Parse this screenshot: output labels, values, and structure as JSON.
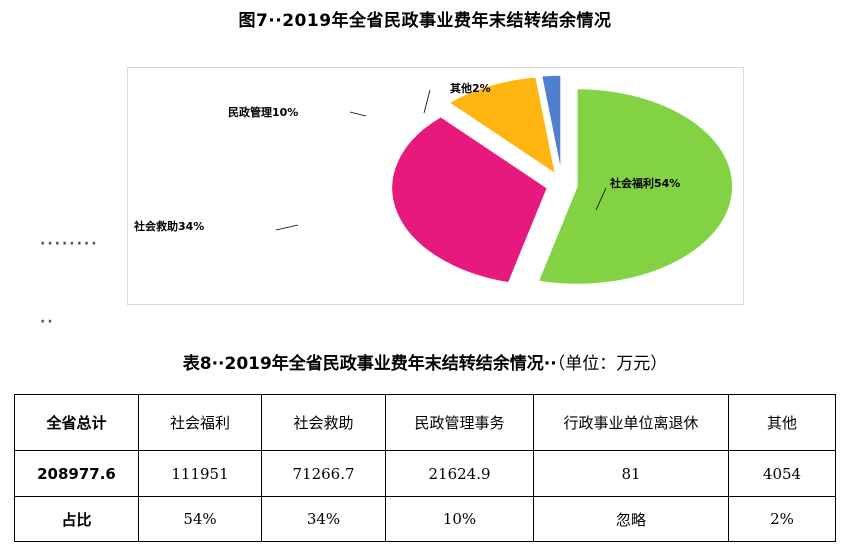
{
  "figure": {
    "title": "图7··2019年全省民政事业费年末结转结余情况",
    "dots_row1": "········",
    "dots_row2": "··"
  },
  "chart_data": {
    "type": "pie",
    "title": "图7··2019年全省民政事业费年末结转结余情况",
    "slices": [
      {
        "name": "社会福利",
        "value": 54,
        "label": "社会福利54%",
        "color": "#82d243"
      },
      {
        "name": "社会救助",
        "value": 34,
        "label": "社会救助34%",
        "color": "#e8197c"
      },
      {
        "name": "民政管理",
        "value": 10,
        "label": "民政管理10%",
        "color": "#ffb40f"
      },
      {
        "name": "其他",
        "value": 2,
        "label": "其他2%",
        "color": "#4f7fce"
      }
    ],
    "exploded": true,
    "legend": "none"
  },
  "table": {
    "title": "表8··2019年全省民政事业费年末结转结余情况··",
    "unit": "（单位：万元）",
    "rows": [
      [
        "全省总计",
        "社会福利",
        "社会救助",
        "民政管理事务",
        "行政事业单位离退休",
        "其他"
      ],
      [
        "208977.6",
        "111951",
        "71266.7",
        "21624.9",
        "81",
        "4054"
      ],
      [
        "占比",
        "54%",
        "34%",
        "10%",
        "忽略",
        "2%"
      ]
    ]
  }
}
